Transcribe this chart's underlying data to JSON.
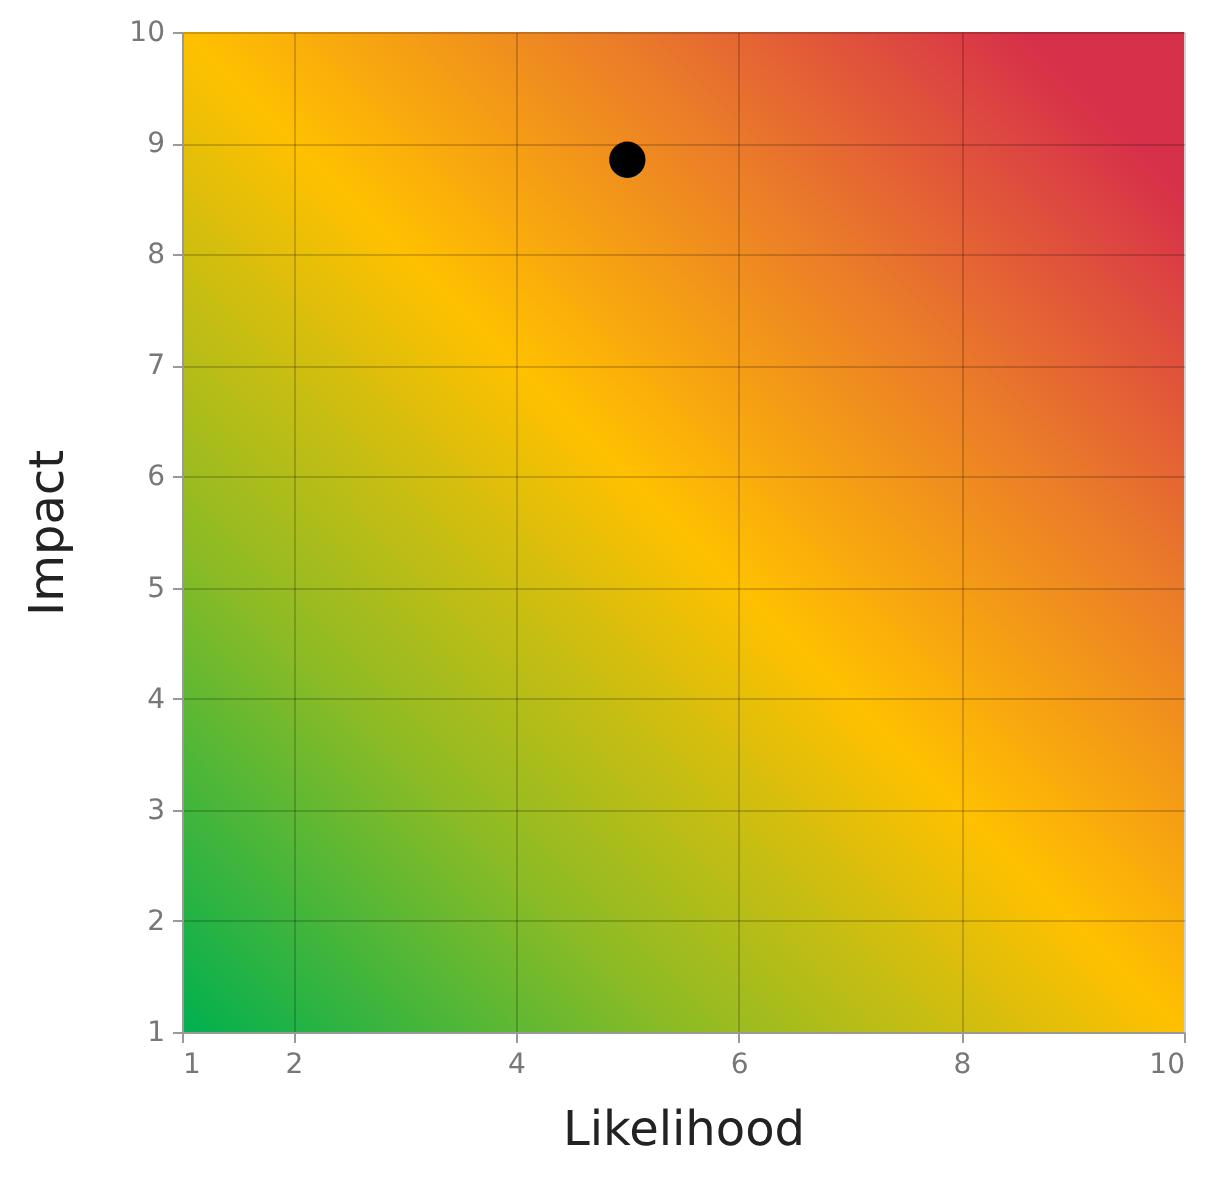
{
  "chart_data": {
    "type": "scatter",
    "xlabel": "Likelihood",
    "ylabel": "Impact",
    "x": [
      5
    ],
    "series": [
      {
        "color": "#000000",
        "values": [
          8.85
        ]
      }
    ],
    "xlim": [
      1,
      10
    ],
    "xticks": [
      1,
      2,
      4,
      6,
      8,
      10
    ],
    "ylim": [
      1,
      10
    ],
    "yticks": [
      1,
      2,
      3,
      4,
      5,
      6,
      7,
      8,
      9,
      10
    ],
    "grid": true,
    "marker": "circle"
  }
}
